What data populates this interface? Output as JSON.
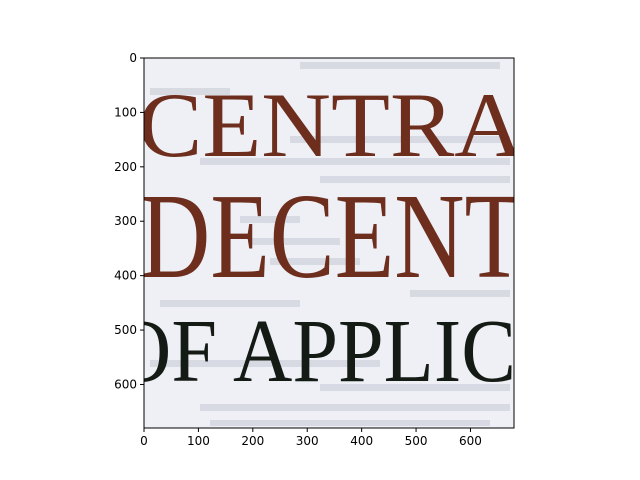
{
  "image": {
    "words": [
      "CENTRA",
      "DECENT",
      "OF APPLIC"
    ],
    "background_color": "#eef0f6",
    "brown_text_color": "#6e2e1e",
    "dark_text_color": "#141a14",
    "ghost_text_color": "#c9ccd6"
  },
  "axes": {
    "x_ticks": [
      "0",
      "100",
      "200",
      "300",
      "400",
      "500",
      "600"
    ],
    "y_ticks": [
      "0",
      "100",
      "200",
      "300",
      "400",
      "500",
      "600"
    ]
  }
}
